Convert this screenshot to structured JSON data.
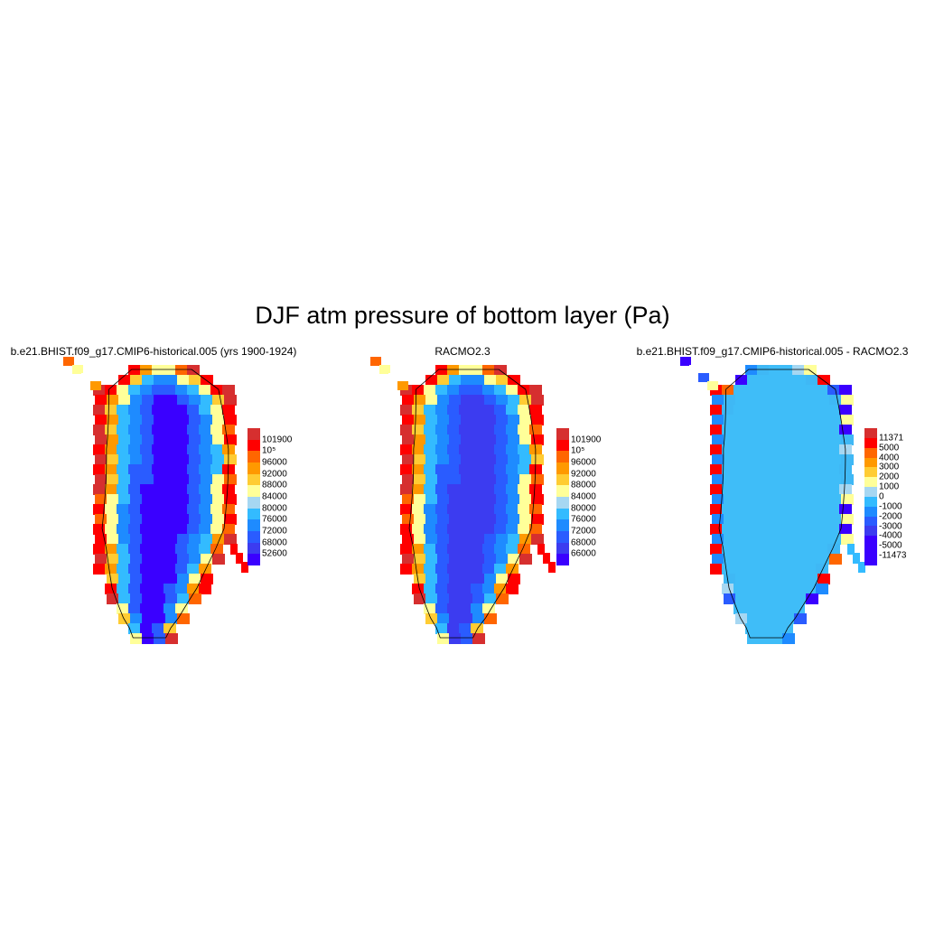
{
  "title": "DJF atm pressure of bottom layer (Pa)",
  "panels": [
    {
      "title": "b.e21.BHIST.f09_g17.CMIP6-historical.005 (yrs 1900-1924)",
      "legend_labels": [
        "101900",
        "10⁵",
        "96000",
        "92000",
        "88000",
        "84000",
        "80000",
        "76000",
        "72000",
        "68000",
        "52600"
      ],
      "legend_colors": [
        "#d62f2f",
        "#ff0000",
        "#ff6600",
        "#ff9900",
        "#ffcc33",
        "#ffff99",
        "#a6d7f2",
        "#33bbff",
        "#1e8bff",
        "#2a5cff",
        "#3c3cf0",
        "#3a00ff"
      ]
    },
    {
      "title": "RACMO2.3",
      "legend_labels": [
        "101900",
        "10⁵",
        "96000",
        "92000",
        "88000",
        "84000",
        "80000",
        "76000",
        "72000",
        "68000",
        "66000"
      ],
      "legend_colors": [
        "#d62f2f",
        "#ff0000",
        "#ff6600",
        "#ff9900",
        "#ffcc33",
        "#ffff99",
        "#a6d7f2",
        "#33bbff",
        "#1e8bff",
        "#2a5cff",
        "#3c3cf0",
        "#3a00ff"
      ]
    },
    {
      "title": "b.e21.BHIST.f09_g17.CMIP6-historical.005 - RACMO2.3",
      "legend_labels": [
        "11371",
        "5000",
        "4000",
        "3000",
        "2000",
        "1000",
        "0",
        "-1000",
        "-2000",
        "-3000",
        "-4000",
        "-5000",
        "-11473"
      ],
      "legend_colors": [
        "#d62f2f",
        "#ff0000",
        "#ff6600",
        "#ff9900",
        "#ffcc33",
        "#ffff99",
        "#a6d7f2",
        "#33bbff",
        "#1e8bff",
        "#2a5cff",
        "#3c3cf0",
        "#3a00ff"
      ]
    }
  ]
}
